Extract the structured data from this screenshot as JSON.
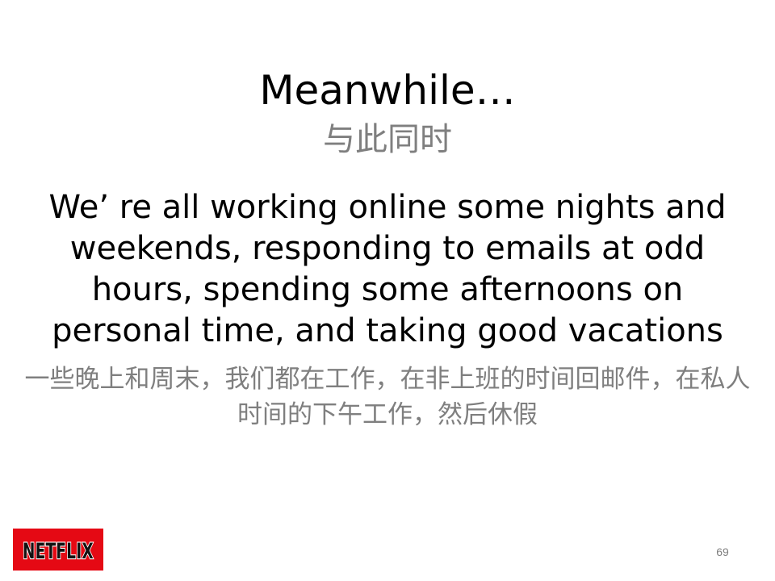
{
  "slide": {
    "title": "Meanwhile…",
    "title_cn": "与此同时",
    "body_en": "We’ re all working online some nights and weekends, responding to emails at odd hours, spending some afternoons on personal time, and taking good vacations",
    "body_cn": "一些晚上和周末，我们都在工作，在非上班的时间回邮件，在私人时间的下午工作，然后休假",
    "page_number": "69"
  },
  "logo": {
    "text": "NETFLIX",
    "background": "#e50914",
    "letter_fill": "#111111",
    "letter_outline": "#ffffff"
  },
  "colors": {
    "title": "#000000",
    "secondary_text": "#7f7f7f"
  }
}
